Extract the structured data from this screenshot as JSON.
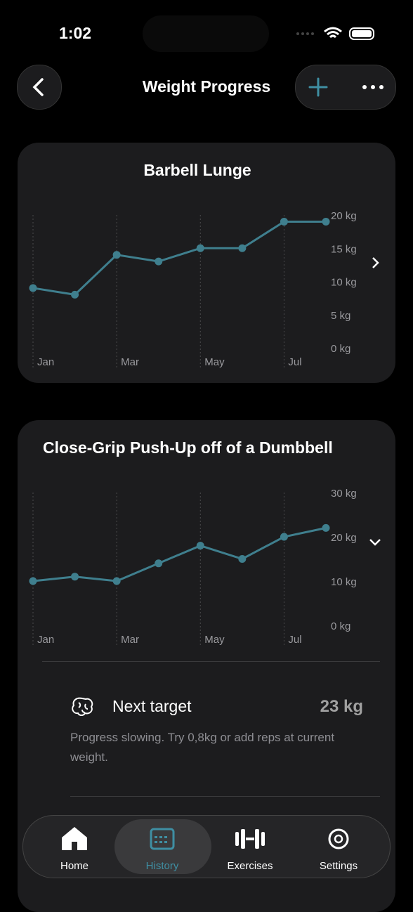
{
  "status": {
    "time": "1:02"
  },
  "header": {
    "title": "Weight Progress"
  },
  "chart_data": [
    {
      "type": "line",
      "title": "Barbell Lunge",
      "color": "#3f7f8e",
      "categories": [
        "Jan",
        null,
        "Mar",
        null,
        "May",
        null,
        "Jul",
        null
      ],
      "values": [
        9,
        8,
        14,
        13,
        15,
        15,
        19,
        19
      ],
      "ylim": [
        0,
        20
      ],
      "yticks": [
        {
          "value": 0,
          "label": "0 kg"
        },
        {
          "value": 5,
          "label": "5 kg"
        },
        {
          "value": 10,
          "label": "10 kg"
        },
        {
          "value": 15,
          "label": "15 kg"
        },
        {
          "value": 20,
          "label": "20 kg"
        }
      ]
    },
    {
      "type": "line",
      "title": "Close-Grip Push-Up off of a Dumbbell",
      "color": "#3f7f8e",
      "categories": [
        "Jan",
        null,
        "Mar",
        null,
        "May",
        null,
        "Jul",
        null
      ],
      "values": [
        10,
        11,
        10,
        14,
        18,
        15,
        20,
        22
      ],
      "ylim": [
        0,
        30
      ],
      "yticks": [
        {
          "value": 0,
          "label": "0 kg"
        },
        {
          "value": 10,
          "label": "10 kg"
        },
        {
          "value": 20,
          "label": "20 kg"
        },
        {
          "value": 30,
          "label": "30 kg"
        }
      ]
    }
  ],
  "target": {
    "label": "Next target",
    "value": "23 kg",
    "note": "Progress slowing. Try 0,8kg or add reps at current weight."
  },
  "tabs": [
    "Home",
    "History",
    "Exercises",
    "Settings"
  ]
}
